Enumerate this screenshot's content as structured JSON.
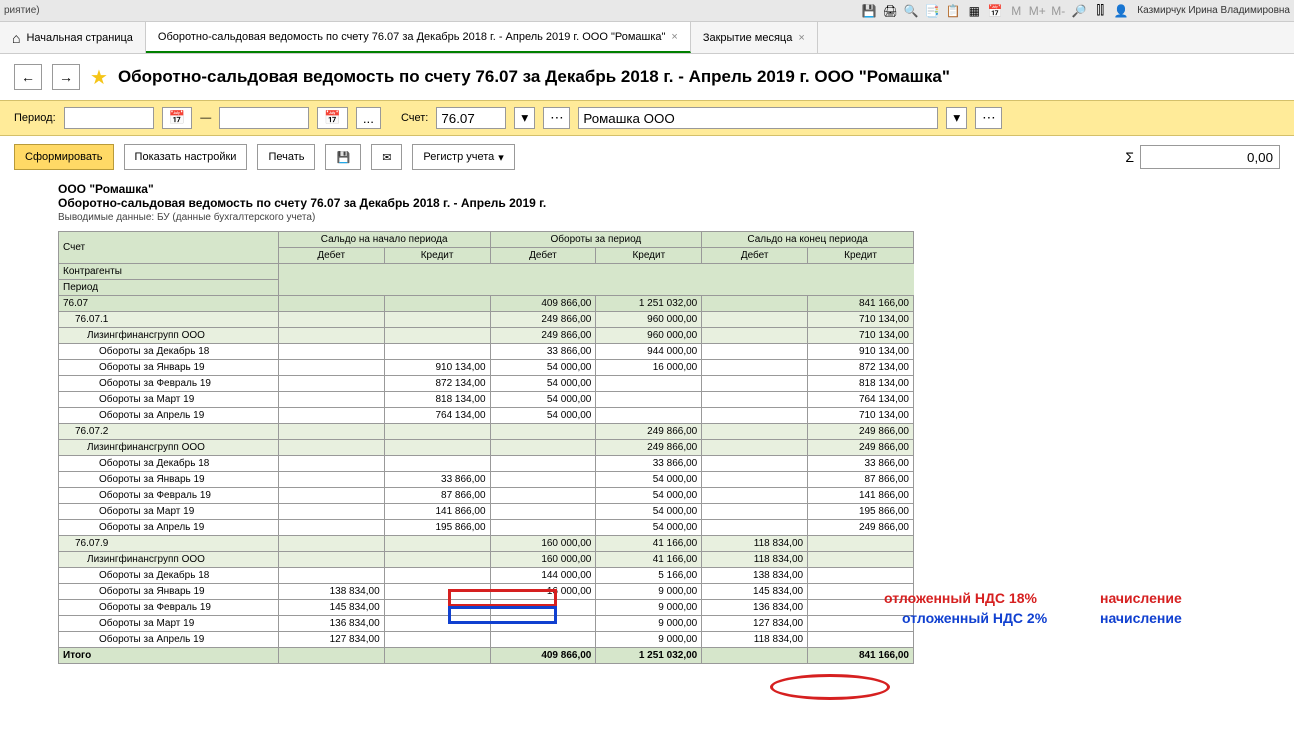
{
  "topbar": {
    "left_text": "риятие)",
    "user": "Казмирчук Ирина Владимировна"
  },
  "tabs": [
    {
      "label": "Начальная страница",
      "closable": false
    },
    {
      "label": "Оборотно-сальдовая ведомость по счету 76.07 за Декабрь 2018 г. - Апрель 2019 г. ООО \"Ромашка\"",
      "closable": true,
      "active": true
    },
    {
      "label": "Закрытие месяца",
      "closable": true
    }
  ],
  "page_title": "Оборотно-сальдовая ведомость по счету 76.07 за Декабрь 2018 г. - Апрель 2019 г. ООО \"Ромашка\"",
  "filter": {
    "period_label": "Период:",
    "dash": "—",
    "account_label": "Счет:",
    "account_value": "76.07",
    "org_value": "Ромашка ООО",
    "dots": "..."
  },
  "actions": {
    "form": "Сформировать",
    "settings": "Показать настройки",
    "print": "Печать",
    "register": "Регистр учета",
    "sigma": "Σ",
    "sum_value": "0,00"
  },
  "report": {
    "company": "ООО \"Ромашка\"",
    "title": "Оборотно-сальдовая ведомость по счету 76.07 за Декабрь 2018 г. - Апрель 2019 г.",
    "meta": "Выводимые данные: БУ (данные бухгалтерского учета)",
    "headers": {
      "account": "Счет",
      "contragent": "Контрагенты",
      "period": "Период",
      "saldo_start": "Сальдо на начало периода",
      "turnover": "Обороты за период",
      "saldo_end": "Сальдо на конец периода",
      "debit": "Дебет",
      "credit": "Кредит"
    },
    "total_label": "Итого",
    "rows": [
      {
        "name": "76.07",
        "cls": "green",
        "d2": "409 866,00",
        "c2": "1 251 032,00",
        "c3": "841 166,00"
      },
      {
        "name": "76.07.1",
        "cls": "sub",
        "indent": 1,
        "d2": "249 866,00",
        "c2": "960 000,00",
        "c3": "710 134,00"
      },
      {
        "name": "Лизингфинансгрупп ООО",
        "cls": "sub",
        "indent": 2,
        "d2": "249 866,00",
        "c2": "960 000,00",
        "c3": "710 134,00"
      },
      {
        "name": "Обороты за Декабрь 18",
        "indent": 3,
        "d2": "33 866,00",
        "c2": "944 000,00",
        "c3": "910 134,00"
      },
      {
        "name": "Обороты за Январь 19",
        "indent": 3,
        "c1": "910 134,00",
        "d2": "54 000,00",
        "c2": "16 000,00",
        "c3": "872 134,00"
      },
      {
        "name": "Обороты за Февраль 19",
        "indent": 3,
        "c1": "872 134,00",
        "d2": "54 000,00",
        "c3": "818 134,00"
      },
      {
        "name": "Обороты за Март 19",
        "indent": 3,
        "c1": "818 134,00",
        "d2": "54 000,00",
        "c3": "764 134,00"
      },
      {
        "name": "Обороты за Апрель 19",
        "indent": 3,
        "c1": "764 134,00",
        "d2": "54 000,00",
        "c3": "710 134,00"
      },
      {
        "name": "76.07.2",
        "cls": "sub",
        "indent": 1,
        "c2": "249 866,00",
        "c3": "249 866,00"
      },
      {
        "name": "Лизингфинансгрупп ООО",
        "cls": "sub",
        "indent": 2,
        "c2": "249 866,00",
        "c3": "249 866,00"
      },
      {
        "name": "Обороты за Декабрь 18",
        "indent": 3,
        "c2": "33 866,00",
        "c3": "33 866,00"
      },
      {
        "name": "Обороты за Январь 19",
        "indent": 3,
        "c1": "33 866,00",
        "c2": "54 000,00",
        "c3": "87 866,00"
      },
      {
        "name": "Обороты за Февраль 19",
        "indent": 3,
        "c1": "87 866,00",
        "c2": "54 000,00",
        "c3": "141 866,00"
      },
      {
        "name": "Обороты за Март 19",
        "indent": 3,
        "c1": "141 866,00",
        "c2": "54 000,00",
        "c3": "195 866,00"
      },
      {
        "name": "Обороты за Апрель 19",
        "indent": 3,
        "c1": "195 866,00",
        "c2": "54 000,00",
        "c3": "249 866,00"
      },
      {
        "name": "76.07.9",
        "cls": "sub",
        "indent": 1,
        "d2": "160 000,00",
        "c2": "41 166,00",
        "d3": "118 834,00"
      },
      {
        "name": "Лизингфинансгрупп ООО",
        "cls": "sub",
        "indent": 2,
        "d2": "160 000,00",
        "c2": "41 166,00",
        "d3": "118 834,00"
      },
      {
        "name": "Обороты за Декабрь 18",
        "indent": 3,
        "d2": "144 000,00",
        "c2": "5 166,00",
        "d3": "138 834,00"
      },
      {
        "name": "Обороты за Январь 19",
        "indent": 3,
        "d1": "138 834,00",
        "d2": "16 000,00",
        "c2": "9 000,00",
        "d3": "145 834,00"
      },
      {
        "name": "Обороты за Февраль 19",
        "indent": 3,
        "d1": "145 834,00",
        "c2": "9 000,00",
        "d3": "136 834,00"
      },
      {
        "name": "Обороты за Март 19",
        "indent": 3,
        "d1": "136 834,00",
        "c2": "9 000,00",
        "d3": "127 834,00"
      },
      {
        "name": "Обороты за Апрель 19",
        "indent": 3,
        "d1": "127 834,00",
        "c2": "9 000,00",
        "d3": "118 834,00"
      }
    ],
    "total": {
      "d2": "409 866,00",
      "c2": "1 251 032,00",
      "c3": "841 166,00"
    }
  },
  "annotations": {
    "red1": "отложенный НДС 18%",
    "red2": "начисление",
    "blue1": "отложенный НДС 2%",
    "blue2": "начисление"
  }
}
